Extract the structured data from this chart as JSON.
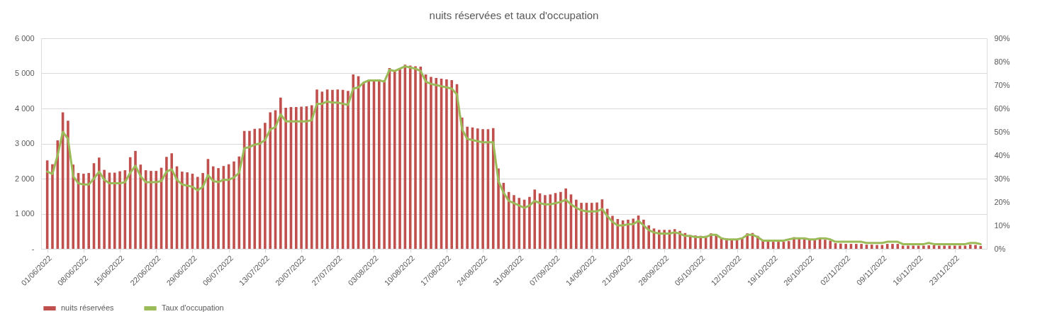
{
  "chart_data": {
    "type": "bar",
    "title": "nuits réservées et taux d'occupation",
    "x": [
      "2022-06-01",
      "2022-06-02",
      "2022-06-03",
      "2022-06-04",
      "2022-06-05",
      "2022-06-06",
      "2022-06-07",
      "2022-06-08",
      "2022-06-09",
      "2022-06-10",
      "2022-06-11",
      "2022-06-12",
      "2022-06-13",
      "2022-06-14",
      "2022-06-15",
      "2022-06-16",
      "2022-06-17",
      "2022-06-18",
      "2022-06-19",
      "2022-06-20",
      "2022-06-21",
      "2022-06-22",
      "2022-06-23",
      "2022-06-24",
      "2022-06-25",
      "2022-06-26",
      "2022-06-27",
      "2022-06-28",
      "2022-06-29",
      "2022-06-30",
      "2022-07-01",
      "2022-07-02",
      "2022-07-03",
      "2022-07-04",
      "2022-07-05",
      "2022-07-06",
      "2022-07-07",
      "2022-07-08",
      "2022-07-09",
      "2022-07-10",
      "2022-07-11",
      "2022-07-12",
      "2022-07-13",
      "2022-07-14",
      "2022-07-15",
      "2022-07-16",
      "2022-07-17",
      "2022-07-18",
      "2022-07-19",
      "2022-07-20",
      "2022-07-21",
      "2022-07-22",
      "2022-07-23",
      "2022-07-24",
      "2022-07-25",
      "2022-07-26",
      "2022-07-27",
      "2022-07-28",
      "2022-07-29",
      "2022-07-30",
      "2022-07-31",
      "2022-08-01",
      "2022-08-02",
      "2022-08-03",
      "2022-08-04",
      "2022-08-05",
      "2022-08-06",
      "2022-08-07",
      "2022-08-08",
      "2022-08-09",
      "2022-08-10",
      "2022-08-11",
      "2022-08-12",
      "2022-08-13",
      "2022-08-14",
      "2022-08-15",
      "2022-08-16",
      "2022-08-17",
      "2022-08-18",
      "2022-08-19",
      "2022-08-20",
      "2022-08-21",
      "2022-08-22",
      "2022-08-23",
      "2022-08-24",
      "2022-08-25",
      "2022-08-26",
      "2022-08-27",
      "2022-08-28",
      "2022-08-29",
      "2022-08-30",
      "2022-08-31",
      "2022-09-01",
      "2022-09-02",
      "2022-09-03",
      "2022-09-04",
      "2022-09-05",
      "2022-09-06",
      "2022-09-07",
      "2022-09-08",
      "2022-09-09",
      "2022-09-10",
      "2022-09-11",
      "2022-09-12",
      "2022-09-13",
      "2022-09-14",
      "2022-09-15",
      "2022-09-16",
      "2022-09-17",
      "2022-09-18",
      "2022-09-19",
      "2022-09-20",
      "2022-09-21",
      "2022-09-22",
      "2022-09-23",
      "2022-09-24",
      "2022-09-25",
      "2022-09-26",
      "2022-09-27",
      "2022-09-28",
      "2022-09-29",
      "2022-09-30",
      "2022-10-01",
      "2022-10-02",
      "2022-10-03",
      "2022-10-04",
      "2022-10-05",
      "2022-10-06",
      "2022-10-07",
      "2022-10-08",
      "2022-10-09",
      "2022-10-10",
      "2022-10-11",
      "2022-10-12",
      "2022-10-13",
      "2022-10-14",
      "2022-10-15",
      "2022-10-16",
      "2022-10-17",
      "2022-10-18",
      "2022-10-19",
      "2022-10-20",
      "2022-10-21",
      "2022-10-22",
      "2022-10-23",
      "2022-10-24",
      "2022-10-25",
      "2022-10-26",
      "2022-10-27",
      "2022-10-28",
      "2022-10-29",
      "2022-10-30",
      "2022-10-31",
      "2022-11-01",
      "2022-11-02",
      "2022-11-03",
      "2022-11-04",
      "2022-11-05",
      "2022-11-06",
      "2022-11-07",
      "2022-11-08",
      "2022-11-09",
      "2022-11-10",
      "2022-11-11",
      "2022-11-12",
      "2022-11-13",
      "2022-11-14",
      "2022-11-15",
      "2022-11-16",
      "2022-11-17",
      "2022-11-18",
      "2022-11-19",
      "2022-11-20",
      "2022-11-21",
      "2022-11-22",
      "2022-11-23",
      "2022-11-24",
      "2022-11-25",
      "2022-11-26",
      "2022-11-27",
      "2022-11-28"
    ],
    "series": [
      {
        "name": "nuits réservées",
        "color": "#c0504d",
        "values": [
          2520,
          2410,
          3090,
          3890,
          3650,
          2400,
          2160,
          2140,
          2160,
          2440,
          2600,
          2250,
          2170,
          2170,
          2210,
          2240,
          2610,
          2790,
          2400,
          2240,
          2220,
          2220,
          2310,
          2620,
          2720,
          2350,
          2200,
          2180,
          2140,
          2050,
          2160,
          2560,
          2350,
          2300,
          2360,
          2410,
          2490,
          2630,
          3360,
          3360,
          3420,
          3430,
          3590,
          3890,
          3950,
          4310,
          4020,
          4040,
          4040,
          4050,
          4060,
          4090,
          4540,
          4480,
          4540,
          4530,
          4540,
          4530,
          4500,
          4970,
          4920,
          4750,
          4780,
          4800,
          4830,
          4790,
          5150,
          5050,
          5120,
          5250,
          5220,
          5200,
          5190,
          4970,
          4900,
          4870,
          4850,
          4830,
          4810,
          4690,
          3740,
          3480,
          3460,
          3430,
          3410,
          3410,
          3440,
          2290,
          1880,
          1620,
          1530,
          1450,
          1400,
          1480,
          1690,
          1580,
          1530,
          1550,
          1590,
          1620,
          1720,
          1550,
          1400,
          1310,
          1310,
          1310,
          1320,
          1410,
          1140,
          940,
          850,
          810,
          830,
          860,
          950,
          830,
          670,
          580,
          540,
          540,
          540,
          560,
          510,
          450,
          390,
          380,
          370,
          370,
          440,
          410,
          310,
          300,
          280,
          280,
          290,
          440,
          450,
          370,
          240,
          220,
          200,
          200,
          200,
          220,
          330,
          310,
          270,
          260,
          270,
          290,
          260,
          230,
          160,
          150,
          140,
          140,
          140,
          140,
          120,
          120,
          110,
          110,
          140,
          140,
          140,
          90,
          90,
          90,
          90,
          90,
          100,
          100,
          90,
          90,
          90,
          90,
          90,
          90,
          120,
          110,
          80
        ]
      },
      {
        "name": "Taux d'occupation",
        "type": "line",
        "axis": "y2",
        "color": "#9bbb59",
        "values": [
          33,
          32,
          40,
          50,
          47,
          31,
          28,
          27.5,
          27.5,
          30,
          33,
          29.5,
          28,
          28,
          28,
          28.5,
          32.5,
          35.5,
          31,
          28.5,
          28.5,
          28.5,
          29,
          33,
          34,
          29.5,
          27.5,
          27,
          26.5,
          25,
          26.5,
          31.5,
          29,
          28.5,
          29.5,
          29.5,
          30.5,
          32.5,
          43,
          43.5,
          44.5,
          45,
          46.5,
          51,
          52,
          57.5,
          54.5,
          54.5,
          54.5,
          54.5,
          54.5,
          55,
          62,
          62,
          63,
          62.5,
          62.5,
          62,
          61.5,
          68.5,
          69,
          71,
          72,
          72,
          72,
          71.5,
          76.5,
          76,
          77,
          78,
          77.5,
          77,
          76,
          71.5,
          70.5,
          70,
          69.5,
          69,
          68.5,
          66,
          51,
          47,
          46.5,
          46,
          45.5,
          45.5,
          45.5,
          29,
          24,
          20.5,
          19.5,
          18.5,
          17.5,
          18.5,
          20.5,
          19.5,
          19,
          19,
          19.5,
          20,
          21,
          19,
          17.5,
          16.5,
          16,
          16,
          16,
          17,
          14,
          11.5,
          10,
          10,
          10.5,
          10.5,
          12,
          10,
          8,
          7,
          6.5,
          6.5,
          6.5,
          7,
          6.5,
          5.5,
          5.5,
          5,
          5,
          5,
          6,
          6,
          4.5,
          4,
          4,
          4,
          4.5,
          6,
          6,
          5,
          3.5,
          3.5,
          3.5,
          3.5,
          3.5,
          4,
          4.5,
          4.5,
          4.5,
          4,
          4,
          4.5,
          4.5,
          4,
          3,
          3,
          3,
          3,
          3,
          3,
          2.5,
          2.5,
          2.5,
          2.5,
          3,
          3,
          3,
          2,
          2,
          2,
          2,
          2,
          2.5,
          2,
          2,
          2,
          2,
          2,
          2,
          2,
          2.5,
          2.5,
          2
        ]
      }
    ],
    "xlim": [
      "2022-05-31T12:00",
      "2022-11-28T12:00"
    ],
    "xticks": [
      {
        "value": "2022-06-01",
        "label": "01/06/2022"
      },
      {
        "value": "2022-06-08",
        "label": "08/06/2022"
      },
      {
        "value": "2022-06-15",
        "label": "15/06/2022"
      },
      {
        "value": "2022-06-22",
        "label": "22/06/2022"
      },
      {
        "value": "2022-06-29",
        "label": "29/06/2022"
      },
      {
        "value": "2022-07-06",
        "label": "06/07/2022"
      },
      {
        "value": "2022-07-13",
        "label": "13/07/2022"
      },
      {
        "value": "2022-07-20",
        "label": "20/07/2022"
      },
      {
        "value": "2022-07-27",
        "label": "27/07/2022"
      },
      {
        "value": "2022-08-03",
        "label": "03/08/2022"
      },
      {
        "value": "2022-08-10",
        "label": "10/08/2022"
      },
      {
        "value": "2022-08-17",
        "label": "17/08/2022"
      },
      {
        "value": "2022-08-24",
        "label": "24/08/2022"
      },
      {
        "value": "2022-08-31",
        "label": "31/08/2022"
      },
      {
        "value": "2022-09-07",
        "label": "07/09/2022"
      },
      {
        "value": "2022-09-14",
        "label": "14/09/2022"
      },
      {
        "value": "2022-09-21",
        "label": "21/09/2022"
      },
      {
        "value": "2022-09-28",
        "label": "28/09/2022"
      },
      {
        "value": "2022-10-05",
        "label": "05/10/2022"
      },
      {
        "value": "2022-10-12",
        "label": "12/10/2022"
      },
      {
        "value": "2022-10-19",
        "label": "19/10/2022"
      },
      {
        "value": "2022-10-26",
        "label": "26/10/2022"
      },
      {
        "value": "2022-11-02",
        "label": "02/11/2022"
      },
      {
        "value": "2022-11-09",
        "label": "09/11/2022"
      },
      {
        "value": "2022-11-16",
        "label": "16/11/2022"
      },
      {
        "value": "2022-11-23",
        "label": "23/11/2022"
      }
    ],
    "ylim": [
      0,
      6000
    ],
    "yticks": [
      {
        "value": 0,
        "label": "-"
      },
      {
        "value": 1000,
        "label": "1 000"
      },
      {
        "value": 2000,
        "label": "2 000"
      },
      {
        "value": 3000,
        "label": "3 000"
      },
      {
        "value": 4000,
        "label": "4 000"
      },
      {
        "value": 5000,
        "label": "5 000"
      },
      {
        "value": 6000,
        "label": "6 000"
      }
    ],
    "y2lim": [
      0,
      90
    ],
    "y2ticks": [
      {
        "value": 0,
        "label": "0%"
      },
      {
        "value": 10,
        "label": "10%"
      },
      {
        "value": 20,
        "label": "20%"
      },
      {
        "value": 30,
        "label": "30%"
      },
      {
        "value": 40,
        "label": "40%"
      },
      {
        "value": 50,
        "label": "50%"
      },
      {
        "value": 60,
        "label": "60%"
      },
      {
        "value": 70,
        "label": "70%"
      },
      {
        "value": 80,
        "label": "80%"
      },
      {
        "value": 90,
        "label": "90%"
      }
    ],
    "grid": "y",
    "legend": "bottom",
    "line_style": "solid",
    "marker": "none"
  }
}
